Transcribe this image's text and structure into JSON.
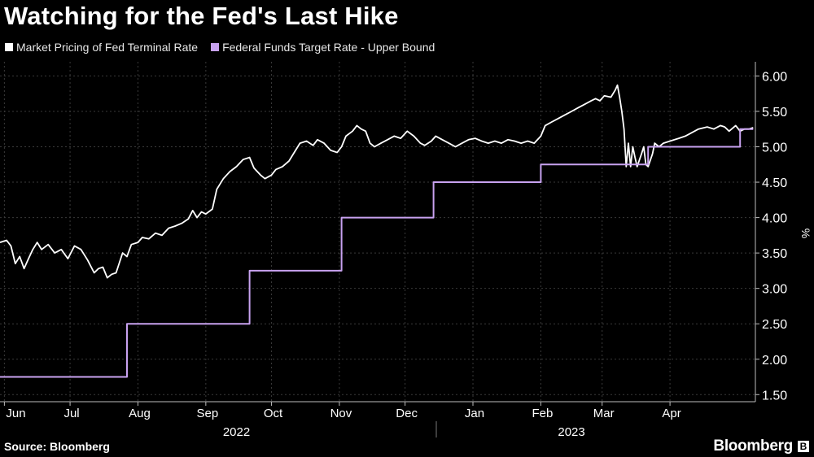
{
  "title": "Watching for the Fed's Last Hike",
  "source": "Source: Bloomberg",
  "brand": "Bloomberg",
  "brand_icon": "bloomberg-b-icon",
  "colors": {
    "terminal": "#ffffff",
    "target": "#c8a2f0",
    "grid": "#3a3a3a",
    "background": "#000000"
  },
  "chart_data": {
    "type": "line",
    "title": "Watching for the Fed's Last Hike",
    "ylabel": "%",
    "ylim": [
      1.4,
      6.2
    ],
    "xlim": [
      "2022-05-30",
      "2023-05-10"
    ],
    "yticks": [
      "1.50",
      "2.00",
      "2.50",
      "3.00",
      "3.50",
      "4.00",
      "4.50",
      "5.00",
      "5.50",
      "6.00"
    ],
    "grid": true,
    "legend_position": "top-left",
    "month_ticks": [
      {
        "label": "Jun",
        "date": "2022-06-01"
      },
      {
        "label": "Jul",
        "date": "2022-07-01"
      },
      {
        "label": "Aug",
        "date": "2022-08-01"
      },
      {
        "label": "Sep",
        "date": "2022-09-01"
      },
      {
        "label": "Oct",
        "date": "2022-10-01"
      },
      {
        "label": "Nov",
        "date": "2022-11-01"
      },
      {
        "label": "Dec",
        "date": "2022-12-01"
      },
      {
        "label": "Jan",
        "date": "2023-01-01"
      },
      {
        "label": "Feb",
        "date": "2023-02-01"
      },
      {
        "label": "Mar",
        "date": "2023-03-01"
      },
      {
        "label": "Apr",
        "date": "2023-04-01"
      }
    ],
    "year_labels": [
      {
        "label": "2022",
        "date": "2022-09-15"
      },
      {
        "label": "2023",
        "date": "2023-02-15"
      }
    ],
    "series": [
      {
        "name": "Market Pricing of Fed Terminal Rate",
        "style": "line",
        "points": [
          [
            "2022-05-30",
            3.65
          ],
          [
            "2022-06-02",
            3.68
          ],
          [
            "2022-06-04",
            3.6
          ],
          [
            "2022-06-06",
            3.35
          ],
          [
            "2022-06-08",
            3.45
          ],
          [
            "2022-06-10",
            3.28
          ],
          [
            "2022-06-12",
            3.42
          ],
          [
            "2022-06-14",
            3.55
          ],
          [
            "2022-06-16",
            3.65
          ],
          [
            "2022-06-18",
            3.55
          ],
          [
            "2022-06-21",
            3.62
          ],
          [
            "2022-06-24",
            3.5
          ],
          [
            "2022-06-27",
            3.55
          ],
          [
            "2022-06-30",
            3.42
          ],
          [
            "2022-07-03",
            3.6
          ],
          [
            "2022-07-06",
            3.55
          ],
          [
            "2022-07-09",
            3.4
          ],
          [
            "2022-07-12",
            3.22
          ],
          [
            "2022-07-14",
            3.28
          ],
          [
            "2022-07-16",
            3.3
          ],
          [
            "2022-07-18",
            3.15
          ],
          [
            "2022-07-20",
            3.2
          ],
          [
            "2022-07-22",
            3.22
          ],
          [
            "2022-07-25",
            3.5
          ],
          [
            "2022-07-27",
            3.45
          ],
          [
            "2022-07-29",
            3.62
          ],
          [
            "2022-08-01",
            3.65
          ],
          [
            "2022-08-03",
            3.72
          ],
          [
            "2022-08-06",
            3.7
          ],
          [
            "2022-08-09",
            3.78
          ],
          [
            "2022-08-12",
            3.75
          ],
          [
            "2022-08-15",
            3.85
          ],
          [
            "2022-08-18",
            3.88
          ],
          [
            "2022-08-21",
            3.92
          ],
          [
            "2022-08-24",
            3.98
          ],
          [
            "2022-08-26",
            4.1
          ],
          [
            "2022-08-28",
            4.0
          ],
          [
            "2022-08-30",
            4.08
          ],
          [
            "2022-09-01",
            4.05
          ],
          [
            "2022-09-04",
            4.12
          ],
          [
            "2022-09-06",
            4.4
          ],
          [
            "2022-09-09",
            4.55
          ],
          [
            "2022-09-12",
            4.65
          ],
          [
            "2022-09-15",
            4.72
          ],
          [
            "2022-09-18",
            4.82
          ],
          [
            "2022-09-21",
            4.85
          ],
          [
            "2022-09-23",
            4.7
          ],
          [
            "2022-09-26",
            4.6
          ],
          [
            "2022-09-28",
            4.55
          ],
          [
            "2022-10-01",
            4.6
          ],
          [
            "2022-10-03",
            4.68
          ],
          [
            "2022-10-06",
            4.72
          ],
          [
            "2022-10-09",
            4.8
          ],
          [
            "2022-10-12",
            4.95
          ],
          [
            "2022-10-14",
            5.05
          ],
          [
            "2022-10-17",
            5.08
          ],
          [
            "2022-10-20",
            5.02
          ],
          [
            "2022-10-22",
            5.1
          ],
          [
            "2022-10-25",
            5.05
          ],
          [
            "2022-10-28",
            4.95
          ],
          [
            "2022-10-31",
            4.92
          ],
          [
            "2022-11-02",
            5.0
          ],
          [
            "2022-11-04",
            5.15
          ],
          [
            "2022-11-07",
            5.22
          ],
          [
            "2022-11-09",
            5.3
          ],
          [
            "2022-11-11",
            5.25
          ],
          [
            "2022-11-13",
            5.22
          ],
          [
            "2022-11-15",
            5.05
          ],
          [
            "2022-11-17",
            5.0
          ],
          [
            "2022-11-20",
            5.05
          ],
          [
            "2022-11-23",
            5.1
          ],
          [
            "2022-11-26",
            5.15
          ],
          [
            "2022-11-29",
            5.12
          ],
          [
            "2022-12-02",
            5.22
          ],
          [
            "2022-12-05",
            5.15
          ],
          [
            "2022-12-08",
            5.05
          ],
          [
            "2022-12-10",
            5.02
          ],
          [
            "2022-12-13",
            5.08
          ],
          [
            "2022-12-15",
            5.15
          ],
          [
            "2022-12-18",
            5.1
          ],
          [
            "2022-12-21",
            5.05
          ],
          [
            "2022-12-24",
            5.0
          ],
          [
            "2022-12-27",
            5.05
          ],
          [
            "2022-12-30",
            5.1
          ],
          [
            "2023-01-02",
            5.12
          ],
          [
            "2023-01-05",
            5.08
          ],
          [
            "2023-01-08",
            5.05
          ],
          [
            "2023-01-11",
            5.08
          ],
          [
            "2023-01-14",
            5.05
          ],
          [
            "2023-01-17",
            5.1
          ],
          [
            "2023-01-20",
            5.08
          ],
          [
            "2023-01-23",
            5.05
          ],
          [
            "2023-01-26",
            5.08
          ],
          [
            "2023-01-29",
            5.05
          ],
          [
            "2023-02-01",
            5.15
          ],
          [
            "2023-02-03",
            5.3
          ],
          [
            "2023-02-06",
            5.35
          ],
          [
            "2023-02-09",
            5.4
          ],
          [
            "2023-02-12",
            5.45
          ],
          [
            "2023-02-15",
            5.5
          ],
          [
            "2023-02-18",
            5.55
          ],
          [
            "2023-02-21",
            5.6
          ],
          [
            "2023-02-24",
            5.65
          ],
          [
            "2023-02-26",
            5.68
          ],
          [
            "2023-02-28",
            5.65
          ],
          [
            "2023-03-02",
            5.72
          ],
          [
            "2023-03-05",
            5.7
          ],
          [
            "2023-03-07",
            5.8
          ],
          [
            "2023-03-08",
            5.87
          ],
          [
            "2023-03-09",
            5.7
          ],
          [
            "2023-03-10",
            5.5
          ],
          [
            "2023-03-11",
            5.25
          ],
          [
            "2023-03-12",
            4.72
          ],
          [
            "2023-03-13",
            5.05
          ],
          [
            "2023-03-14",
            4.72
          ],
          [
            "2023-03-15",
            5.0
          ],
          [
            "2023-03-16",
            4.85
          ],
          [
            "2023-03-17",
            4.72
          ],
          [
            "2023-03-19",
            4.9
          ],
          [
            "2023-03-20",
            5.0
          ],
          [
            "2023-03-21",
            4.75
          ],
          [
            "2023-03-22",
            4.72
          ],
          [
            "2023-03-24",
            4.9
          ],
          [
            "2023-03-25",
            5.05
          ],
          [
            "2023-03-27",
            5.0
          ],
          [
            "2023-03-29",
            5.05
          ],
          [
            "2023-04-01",
            5.08
          ],
          [
            "2023-04-05",
            5.12
          ],
          [
            "2023-04-08",
            5.15
          ],
          [
            "2023-04-11",
            5.2
          ],
          [
            "2023-04-14",
            5.25
          ],
          [
            "2023-04-18",
            5.28
          ],
          [
            "2023-04-21",
            5.25
          ],
          [
            "2023-04-24",
            5.3
          ],
          [
            "2023-04-26",
            5.28
          ],
          [
            "2023-04-28",
            5.22
          ],
          [
            "2023-05-01",
            5.3
          ],
          [
            "2023-05-03",
            5.22
          ],
          [
            "2023-05-05",
            5.25
          ],
          [
            "2023-05-07",
            5.25
          ],
          [
            "2023-05-09",
            5.27
          ]
        ]
      },
      {
        "name": "Federal Funds Target Rate - Upper Bound",
        "style": "step",
        "points": [
          [
            "2022-05-30",
            1.75
          ],
          [
            "2022-07-27",
            2.5
          ],
          [
            "2022-09-21",
            3.25
          ],
          [
            "2022-11-02",
            4.0
          ],
          [
            "2022-12-14",
            4.5
          ],
          [
            "2023-02-01",
            4.75
          ],
          [
            "2023-03-22",
            5.0
          ],
          [
            "2023-05-03",
            5.25
          ],
          [
            "2023-05-09",
            5.25
          ]
        ]
      }
    ]
  }
}
